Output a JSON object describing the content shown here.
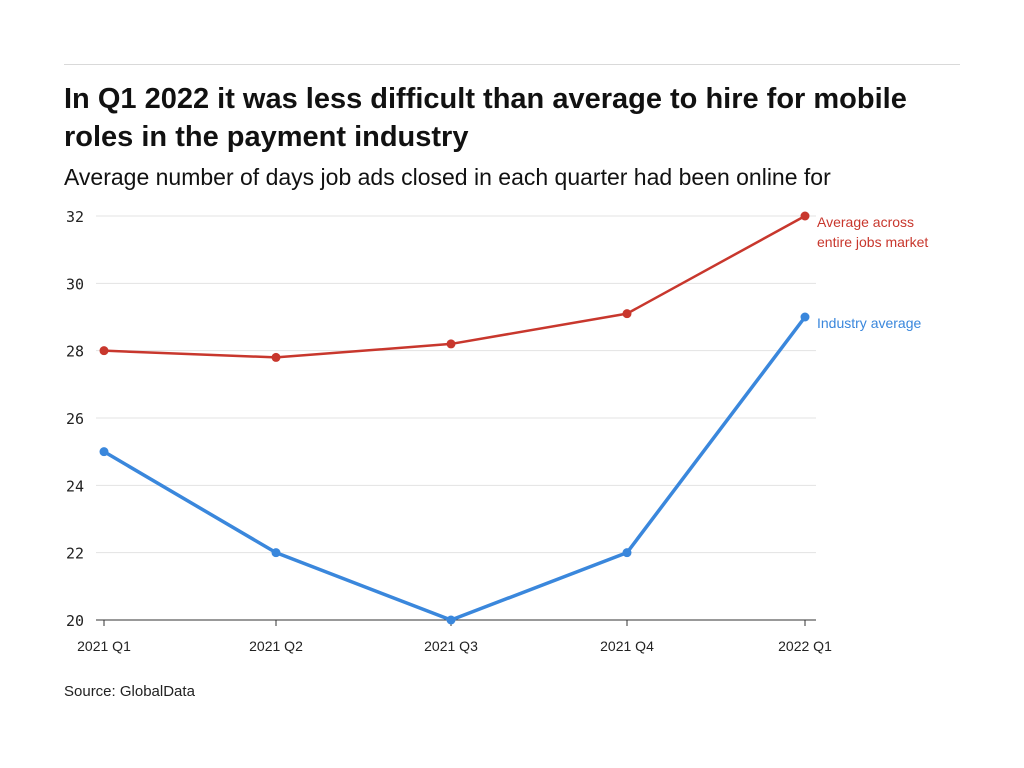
{
  "title": "In Q1 2022 it was less difficult than average to hire for mobile roles in the payment industry",
  "subtitle": "Average number of days job ads closed in each quarter had been online for",
  "source": "Source: GlobalData",
  "colors": {
    "market": "#c8372d",
    "industry": "#3a87dc",
    "grid": "#e3e3e3",
    "axis": "#333333"
  },
  "chart_data": {
    "type": "line",
    "categories": [
      "2021 Q1",
      "2021 Q2",
      "2021 Q3",
      "2021 Q4",
      "2022 Q1"
    ],
    "series": [
      {
        "name": "Average across entire jobs market",
        "label_lines": [
          "Average across",
          "entire jobs market"
        ],
        "values": [
          28,
          27.8,
          28.2,
          29.1,
          32
        ],
        "color": "#c8372d"
      },
      {
        "name": "Industry average",
        "label_lines": [
          "Industry average"
        ],
        "values": [
          25,
          22,
          20,
          22,
          29
        ],
        "color": "#3a87dc"
      }
    ],
    "yticks": [
      20,
      22,
      24,
      26,
      28,
      30,
      32
    ],
    "ylim": [
      20,
      32
    ],
    "grid": true,
    "legend": "inline-right"
  }
}
